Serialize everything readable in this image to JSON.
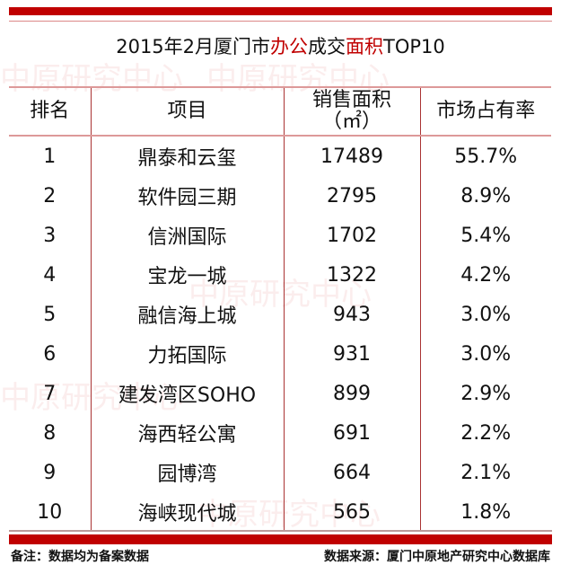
{
  "title": {
    "part1": "2015年2月厦门市",
    "part2": "办公",
    "part3": "成交",
    "part4": "面积",
    "part5": "TOP10"
  },
  "watermark": "中原研究中心",
  "accent_color": "#c00000",
  "table": {
    "headers": [
      "排名",
      "项目",
      "销售面积",
      "（㎡）",
      "市场占有率"
    ],
    "rows": [
      [
        "1",
        "鼎泰和云玺",
        "17489",
        "55.7%"
      ],
      [
        "2",
        "软件园三期",
        "2795",
        "8.9%"
      ],
      [
        "3",
        "信洲国际",
        "1702",
        "5.4%"
      ],
      [
        "4",
        "宝龙一城",
        "1322",
        "4.2%"
      ],
      [
        "5",
        "融信海上城",
        "943",
        "3.0%"
      ],
      [
        "6",
        "力拓国际",
        "931",
        "3.0%"
      ],
      [
        "7",
        "建发湾区SOHO",
        "899",
        "2.9%"
      ],
      [
        "8",
        "海西轻公寓",
        "691",
        "2.2%"
      ],
      [
        "9",
        "园博湾",
        "664",
        "2.1%"
      ],
      [
        "10",
        "海峡现代城",
        "565",
        "1.8%"
      ]
    ]
  },
  "footer": {
    "note": "备注：数据均为备案数据",
    "source": "数据来源：厦门中原地产研究中心数据库"
  }
}
